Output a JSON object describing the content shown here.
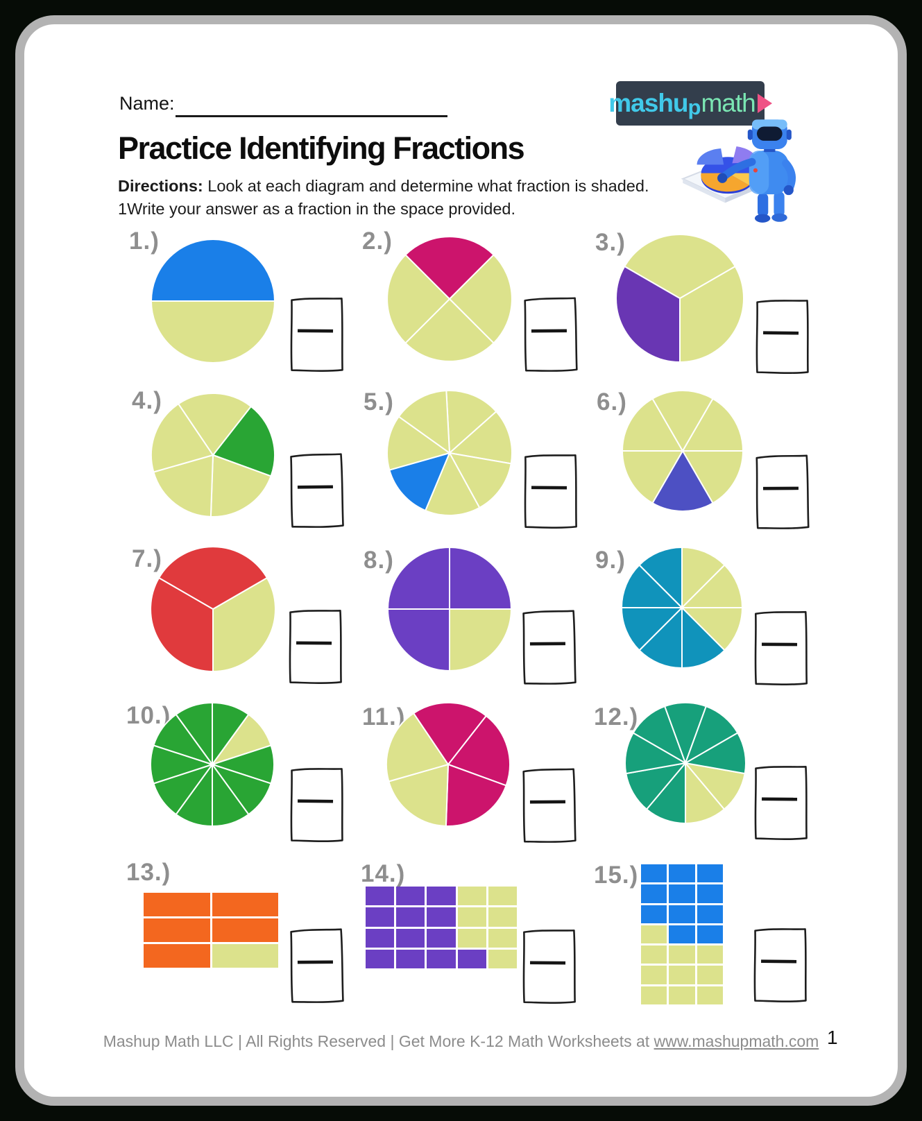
{
  "page": {
    "background_color": "#060c06",
    "frame_color": "#b3b3b3"
  },
  "header": {
    "name_label": "Name:",
    "title": "Practice Identifying Fractions",
    "directions_bold": "Directions:",
    "directions_line1": "Look at each diagram and determine what fraction is shaded.",
    "directions_line2": "1Write your answer as a fraction in the space provided."
  },
  "logo": {
    "word_part1": "mashu",
    "word_part2": "p",
    "word_part3": "math",
    "play_icon": "play-triangle",
    "bg_color": "#333e4c",
    "part_colors": [
      "#41c9e9",
      "#7be6b3",
      "#ef5285"
    ]
  },
  "footer": {
    "text_prefix": "Mashup Math LLC | All Rights Reserved | Get More K-12 Math Worksheets at ",
    "link": "www.mashupmath.com",
    "page_number": "1"
  },
  "colors": {
    "unshaded": "#dce28c",
    "slice_divider": "#ffffff",
    "answer_box_ink": "#1e1e1e"
  },
  "problems": [
    {
      "label": "1.)",
      "type": "pie",
      "total": 2,
      "shaded_count": 1,
      "shade_color": "#1a7fe8",
      "rotation": -90,
      "shaded_indices": [
        0
      ]
    },
    {
      "label": "2.)",
      "type": "pie",
      "total": 4,
      "shaded_count": 1,
      "shade_color": "#cc146c",
      "rotation": -45,
      "shaded_indices": [
        0
      ]
    },
    {
      "label": "3.)",
      "type": "pie",
      "total": 3,
      "shaded_count": 1,
      "shade_color": "#6936b3",
      "rotation": 60,
      "shaded_indices": [
        1
      ]
    },
    {
      "label": "4.)",
      "type": "pie",
      "total": 5,
      "shaded_count": 1,
      "shade_color": "#29a534",
      "rotation": 38,
      "shaded_indices": [
        0
      ]
    },
    {
      "label": "5.)",
      "type": "pie",
      "total": 7,
      "shaded_count": 1,
      "shade_color": "#1a7fe8",
      "rotation": -3,
      "shaded_indices": [
        4
      ]
    },
    {
      "label": "6.)",
      "type": "pie",
      "total": 6,
      "shaded_count": 1,
      "shade_color": "#4d50c3",
      "rotation": 30,
      "shaded_indices": [
        2
      ]
    },
    {
      "label": "7.)",
      "type": "pie",
      "total": 3,
      "shaded_count": 2,
      "shade_color": "#e03a3d",
      "rotation": 60,
      "shaded_indices": [
        1,
        2
      ]
    },
    {
      "label": "8.)",
      "type": "pie",
      "total": 4,
      "shaded_count": 3,
      "shade_color": "#6b3fc3",
      "rotation": 0,
      "shaded_indices": [
        0,
        2,
        3
      ]
    },
    {
      "label": "9.)",
      "type": "pie",
      "total": 8,
      "shaded_count": 5,
      "shade_color": "#1093bb",
      "rotation": 0,
      "shaded_indices": [
        3,
        4,
        5,
        6,
        7
      ]
    },
    {
      "label": "10.)",
      "type": "pie",
      "total": 10,
      "shaded_count": 9,
      "shade_color": "#29a534",
      "rotation": 0,
      "shaded_indices": [
        0,
        2,
        3,
        4,
        5,
        6,
        7,
        8,
        9
      ]
    },
    {
      "label": "11.)",
      "type": "pie",
      "total": 5,
      "shaded_count": 3,
      "shade_color": "#cc146c",
      "rotation": 38,
      "shaded_indices": [
        0,
        1,
        4
      ]
    },
    {
      "label": "12.)",
      "type": "pie",
      "total": 9,
      "shaded_count": 7,
      "shade_color": "#17a07b",
      "rotation": 100,
      "shaded_indices": [
        2,
        3,
        4,
        5,
        6,
        7,
        8
      ]
    },
    {
      "label": "13.)",
      "type": "grid",
      "total": 6,
      "shaded_count": 5,
      "shade_color": "#f3671f",
      "rows": 3,
      "cols": 2,
      "cells": [
        1,
        1,
        1,
        1,
        1,
        0
      ]
    },
    {
      "label": "14.)",
      "type": "grid",
      "total": 20,
      "shaded_count": 13,
      "shade_color": "#6b3fc3",
      "rows": 4,
      "cols": 5,
      "cells": [
        1,
        1,
        1,
        0,
        0,
        1,
        1,
        1,
        0,
        0,
        1,
        1,
        1,
        0,
        0,
        1,
        1,
        1,
        1,
        0
      ]
    },
    {
      "label": "15.)",
      "type": "grid",
      "total": 21,
      "shaded_count": 11,
      "shade_color": "#1a7fe8",
      "rows": 7,
      "cols": 3,
      "cells": [
        1,
        1,
        1,
        1,
        1,
        1,
        1,
        1,
        1,
        0,
        1,
        1,
        0,
        0,
        0,
        0,
        0,
        0,
        0,
        0,
        0
      ]
    }
  ]
}
